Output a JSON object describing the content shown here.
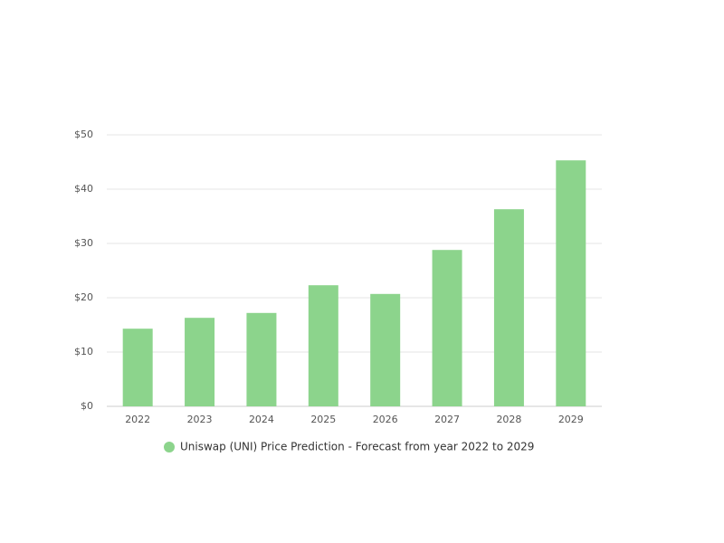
{
  "chart_data": {
    "type": "bar",
    "categories": [
      "2022",
      "2023",
      "2024",
      "2025",
      "2026",
      "2027",
      "2028",
      "2029"
    ],
    "series": [
      {
        "name": "Uniswap (UNI) Price Prediction - Forecast from year 2022 to 2029",
        "color": "#8cd48c",
        "values": [
          14.3,
          16.3,
          17.2,
          22.3,
          20.7,
          28.8,
          36.3,
          45.3
        ]
      }
    ],
    "ylim": [
      0,
      50
    ],
    "yticks": [
      {
        "value": 0,
        "label": "$0"
      },
      {
        "value": 10,
        "label": "$10"
      },
      {
        "value": 20,
        "label": "$20"
      },
      {
        "value": 30,
        "label": "$30"
      },
      {
        "value": 40,
        "label": "$40"
      },
      {
        "value": 50,
        "label": "$50"
      }
    ],
    "grid": true
  }
}
